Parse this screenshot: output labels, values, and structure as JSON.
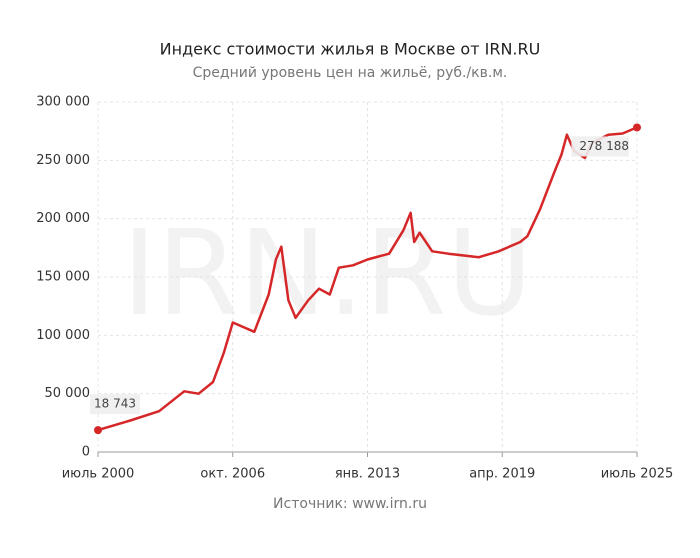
{
  "chart_data": {
    "type": "line",
    "title": "Индекс стоимости жилья в Москве от IRN.RU",
    "subtitle": "Средний уровень цен на жильё, руб./кв.м.",
    "source": "Источник: www.irn.ru",
    "watermark": "IRN.RU",
    "x": [
      "2000-07",
      "2002-01",
      "2003-05",
      "2004-07",
      "2005-03",
      "2005-11",
      "2006-05",
      "2006-10",
      "2007-10",
      "2008-06",
      "2008-10",
      "2009-01",
      "2009-05",
      "2009-09",
      "2010-04",
      "2010-10",
      "2011-04",
      "2011-09",
      "2012-05",
      "2013-01",
      "2014-01",
      "2014-09",
      "2015-01",
      "2015-03",
      "2015-06",
      "2016-01",
      "2016-10",
      "2018-03",
      "2019-02",
      "2020-02",
      "2020-06",
      "2021-01",
      "2021-09",
      "2022-01",
      "2022-04",
      "2022-08",
      "2023-02",
      "2023-06",
      "2024-03",
      "2024-11",
      "2025-07"
    ],
    "series": [
      {
        "name": "Индекс стоимости жилья",
        "color": "#d62728",
        "values": [
          18743,
          27000,
          35000,
          52000,
          50000,
          60000,
          85000,
          111000,
          103000,
          135000,
          165000,
          176000,
          130000,
          115000,
          130000,
          140000,
          135000,
          158000,
          160000,
          165000,
          170000,
          190000,
          205000,
          180000,
          188000,
          172000,
          170000,
          167000,
          172000,
          180000,
          185000,
          208000,
          240000,
          255000,
          272000,
          258000,
          252000,
          265000,
          272000,
          273000,
          278188
        ],
        "value_labels": [
          "18 743",
          null,
          null,
          null,
          null,
          null,
          null,
          null,
          null,
          null,
          null,
          null,
          null,
          null,
          null,
          null,
          null,
          null,
          null,
          null,
          null,
          null,
          null,
          null,
          null,
          null,
          null,
          null,
          null,
          null,
          null,
          null,
          null,
          null,
          null,
          null,
          null,
          null,
          null,
          null,
          "278 188"
        ]
      }
    ],
    "xlim": [
      "2000-07",
      "2025-07"
    ],
    "xticks": [
      {
        "value": "2000-07",
        "label": "июль 2000"
      },
      {
        "value": "2006-10",
        "label": "окт. 2006"
      },
      {
        "value": "2013-01",
        "label": "янв. 2013"
      },
      {
        "value": "2019-04",
        "label": "апр. 2019"
      },
      {
        "value": "2025-07",
        "label": "июль 2025"
      }
    ],
    "ylim": [
      0,
      300000
    ],
    "yticks": [
      0,
      {
        "value": 50000,
        "label": "50 000"
      },
      {
        "value": 100000,
        "label": "100 000"
      },
      {
        "value": 150000,
        "label": "150 000"
      },
      {
        "value": 200000,
        "label": "200 000"
      },
      {
        "value": 250000,
        "label": "250 000"
      },
      {
        "value": 300000,
        "label": "300 000"
      }
    ],
    "grid": true
  }
}
